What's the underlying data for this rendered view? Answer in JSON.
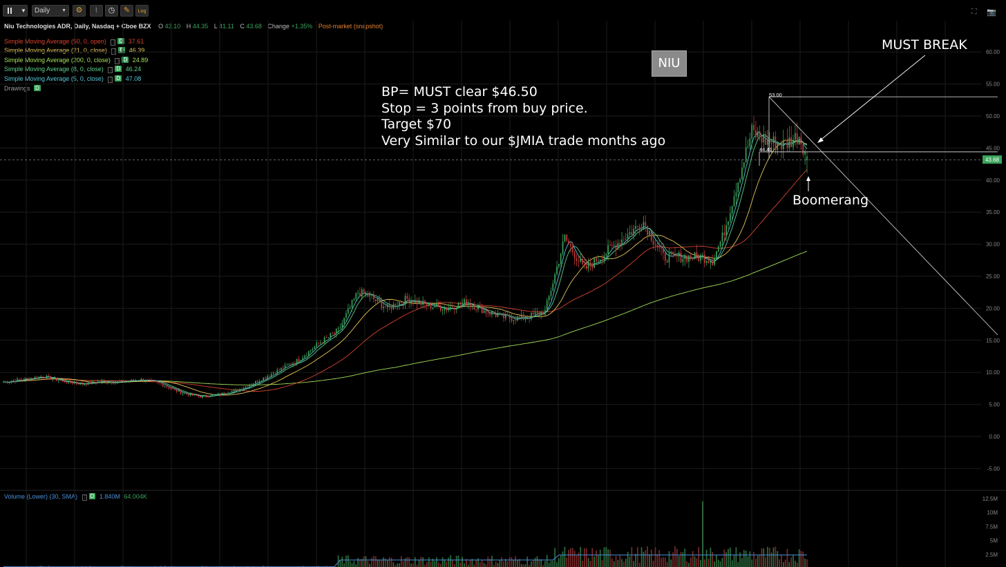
{
  "toolbar": {
    "interval_select": "Daily",
    "log_label": "Log"
  },
  "header": {
    "symbol_title": "Niu Technologies ADR, Daily, Nasdaq + Cboe BZX",
    "open_label": "O",
    "open": "43.10",
    "high_label": "H",
    "high": "44.35",
    "low_label": "L",
    "low": "41.11",
    "close_label": "C",
    "close": "43.68",
    "change_label": "Change",
    "change": "+1.35%",
    "post_market": "Post-market (snapshot)"
  },
  "indicators": [
    {
      "label": "Simple Moving Average (50, 0, open)",
      "value": "37.61",
      "color": "#d8432f"
    },
    {
      "label": "Simple Moving Average (21, 0, close)",
      "value": "46.39",
      "color": "#e6c65a"
    },
    {
      "label": "Simple Moving Average (200, 0, close)",
      "value": "24.89",
      "color": "#a6e05a"
    },
    {
      "label": "Simple Moving Average (8, 0, close)",
      "value": "46.24",
      "color": "#5fd08a"
    },
    {
      "label": "Simple Moving Average (5, 0, close)",
      "value": "47.08",
      "color": "#56c8d8"
    }
  ],
  "drawings": {
    "label": "Drawings",
    "badge": "D"
  },
  "volume_legend": {
    "label": "Volume (Lower) (30, SMA)",
    "badge": "D",
    "value1": "1.840M",
    "value2": "64.004K"
  },
  "annotations": {
    "ticker": "NIU",
    "lines": [
      "BP= MUST clear $46.50",
      "Stop = 3 points from buy price.",
      "Target $70",
      "Very Similar to our $JMIA trade months ago"
    ],
    "must_break": "MUST BREAK",
    "boomerang": "Boomerang",
    "high_marker": "53.00",
    "level_marker": "44.41"
  },
  "last_price_tag": "43.68",
  "colors": {
    "up": "#3aa35a",
    "down": "#c83a3a",
    "background": "#000000",
    "grid": "#1c1c1c"
  },
  "chart_data": {
    "type": "line",
    "title": "Niu Technologies ADR, Daily, Nasdaq + Cboe BZX",
    "price_axis": {
      "ticks": [
        "60.00",
        "55.00",
        "50.00",
        "45.00",
        "40.00",
        "35.00",
        "30.00",
        "25.00",
        "20.00",
        "15.00",
        "10.00",
        "5.00",
        "0.00",
        "-5.00"
      ],
      "range": [
        -5,
        60
      ]
    },
    "volume_axis": {
      "ticks": [
        "12.5M",
        "10M",
        "7.5M",
        "5M",
        "2.5M"
      ],
      "range": [
        0,
        12.5
      ]
    },
    "ohlc_last": {
      "open": 43.1,
      "high": 44.35,
      "low": 41.11,
      "close": 43.68
    },
    "close_path": [
      [
        0,
        8.5
      ],
      [
        10,
        8.9
      ],
      [
        20,
        9.4
      ],
      [
        30,
        8.6
      ],
      [
        40,
        8.2
      ],
      [
        50,
        8.6
      ],
      [
        60,
        8.5
      ],
      [
        70,
        8.9
      ],
      [
        80,
        8.2
      ],
      [
        90,
        6.8
      ],
      [
        100,
        6.2
      ],
      [
        110,
        6.6
      ],
      [
        120,
        7.4
      ],
      [
        130,
        8.8
      ],
      [
        140,
        10.4
      ],
      [
        150,
        12.0
      ],
      [
        160,
        14.5
      ],
      [
        170,
        16.5
      ],
      [
        180,
        22.5
      ],
      [
        185,
        22.0
      ],
      [
        195,
        20.0
      ],
      [
        205,
        21.5
      ],
      [
        215,
        20.5
      ],
      [
        225,
        20.0
      ],
      [
        235,
        21.0
      ],
      [
        245,
        19.5
      ],
      [
        255,
        18.5
      ],
      [
        265,
        18.5
      ],
      [
        275,
        19.5
      ],
      [
        285,
        31.0
      ],
      [
        295,
        26.0
      ],
      [
        305,
        28.5
      ],
      [
        315,
        31.0
      ],
      [
        325,
        33.5
      ],
      [
        335,
        28.0
      ],
      [
        345,
        28.0
      ],
      [
        355,
        28.0
      ],
      [
        360,
        27.5
      ],
      [
        365,
        31.0
      ],
      [
        372,
        39.0
      ],
      [
        380,
        47.5
      ],
      [
        388,
        46.0
      ],
      [
        396,
        45.5
      ],
      [
        404,
        47.0
      ],
      [
        408,
        43.7
      ]
    ],
    "sma_series": [
      {
        "name": "Simple Moving Average (5, 0, close)",
        "last": 47.08
      },
      {
        "name": "Simple Moving Average (8, 0, close)",
        "last": 46.24
      },
      {
        "name": "Simple Moving Average (21, 0, close)",
        "last": 46.39
      },
      {
        "name": "Simple Moving Average (50, 0, open)",
        "last": 37.61
      },
      {
        "name": "Simple Moving Average (200, 0, close)",
        "last": 24.89
      }
    ],
    "drawn_levels": [
      53.0,
      44.41
    ],
    "grid": true
  }
}
